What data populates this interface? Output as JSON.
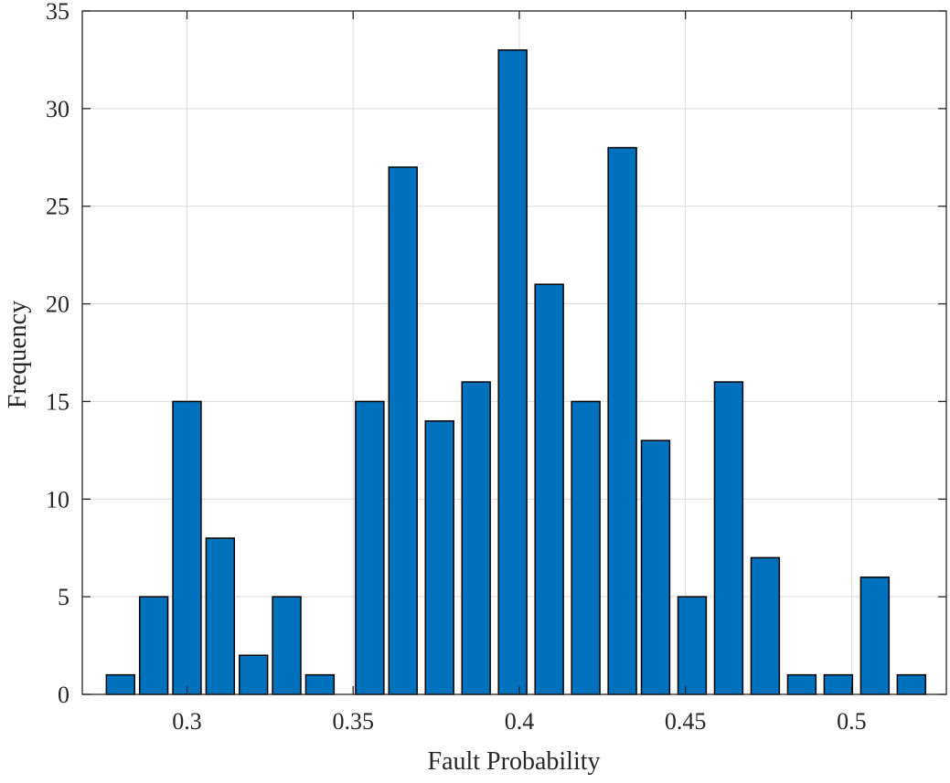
{
  "chart_data": {
    "type": "bar",
    "xlabel": "Fault Probability",
    "ylabel": "Frequency",
    "title": "",
    "xlim": [
      0.2685,
      0.5285
    ],
    "ylim": [
      0,
      35
    ],
    "grid": true,
    "bar_color": "#0072BD",
    "bar_width": 0.0085,
    "x_ticks": [
      0.3,
      0.35,
      0.4,
      0.45,
      0.5
    ],
    "x_tick_labels": [
      "0.3",
      "0.35",
      "0.4",
      "0.45",
      "0.5"
    ],
    "y_ticks": [
      0,
      5,
      10,
      15,
      20,
      25,
      30,
      35
    ],
    "y_tick_labels": [
      "0",
      "5",
      "10",
      "15",
      "20",
      "25",
      "30",
      "35"
    ],
    "x": [
      0.28,
      0.29,
      0.3,
      0.31,
      0.32,
      0.33,
      0.34,
      0.355,
      0.365,
      0.376,
      0.387,
      0.398,
      0.409,
      0.42,
      0.431,
      0.441,
      0.452,
      0.463,
      0.474,
      0.485,
      0.496,
      0.507,
      0.518
    ],
    "values": [
      1,
      5,
      15,
      8,
      2,
      5,
      1,
      15,
      27,
      14,
      16,
      33,
      21,
      15,
      28,
      13,
      5,
      16,
      7,
      1,
      1,
      6,
      1
    ]
  }
}
